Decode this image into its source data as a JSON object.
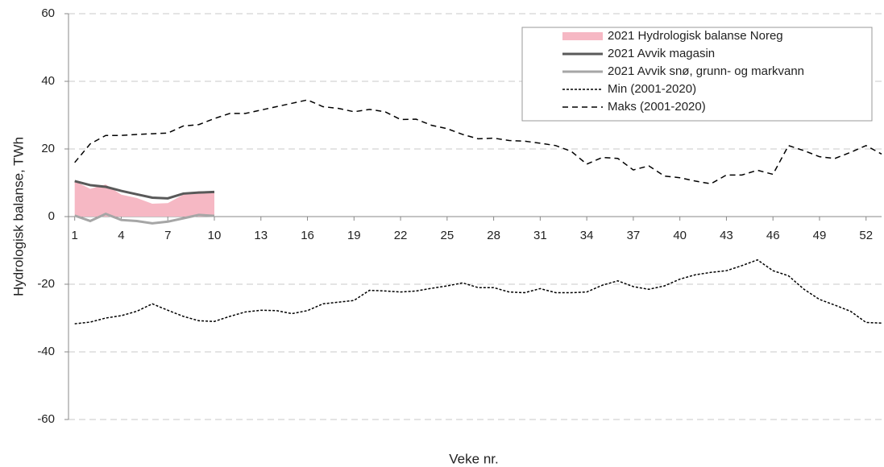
{
  "chart_data": {
    "type": "line",
    "y_label": "Hydrologisk balanse, TWh",
    "x_label": "Veke nr.",
    "x": [
      1,
      2,
      3,
      4,
      5,
      6,
      7,
      8,
      9,
      10,
      11,
      12,
      13,
      14,
      15,
      16,
      17,
      18,
      19,
      20,
      21,
      22,
      23,
      24,
      25,
      26,
      27,
      28,
      29,
      30,
      31,
      32,
      33,
      34,
      35,
      36,
      37,
      38,
      39,
      40,
      41,
      42,
      43,
      44,
      45,
      46,
      47,
      48,
      49,
      50,
      51,
      52,
      53
    ],
    "xlim": [
      0.6,
      53
    ],
    "xticks": [
      1,
      4,
      7,
      10,
      13,
      16,
      19,
      22,
      25,
      28,
      31,
      34,
      37,
      40,
      43,
      46,
      49,
      52
    ],
    "ylim": [
      -60,
      60
    ],
    "yticks": [
      -60,
      -40,
      -20,
      0,
      20,
      40,
      60
    ],
    "grid": true,
    "legend": "top-right",
    "series": [
      {
        "name": "2021 Hydrologisk balanse Noreg",
        "color": "#f6b8c4",
        "style": "area",
        "values": [
          10.5,
          8.2,
          9.5,
          6.5,
          5.5,
          3.8,
          4,
          6.5,
          7.5,
          7.5,
          null,
          null,
          null,
          null,
          null,
          null,
          null,
          null,
          null,
          null,
          null,
          null,
          null,
          null,
          null,
          null,
          null,
          null,
          null,
          null,
          null,
          null,
          null,
          null,
          null,
          null,
          null,
          null,
          null,
          null,
          null,
          null,
          null,
          null,
          null,
          null,
          null,
          null,
          null,
          null,
          null,
          null,
          null
        ]
      },
      {
        "name": "2021 Avvik magasin",
        "color": "#595959",
        "style": "solid",
        "values": [
          10.5,
          9.3,
          8.8,
          7.6,
          6.6,
          5.6,
          5.4,
          6.8,
          7.1,
          7.3,
          null,
          null,
          null,
          null,
          null,
          null,
          null,
          null,
          null,
          null,
          null,
          null,
          null,
          null,
          null,
          null,
          null,
          null,
          null,
          null,
          null,
          null,
          null,
          null,
          null,
          null,
          null,
          null,
          null,
          null,
          null,
          null,
          null,
          null,
          null,
          null,
          null,
          null,
          null,
          null,
          null,
          null,
          null
        ]
      },
      {
        "name": "2021 Avvik snø, grunn- og markvann",
        "color": "#a6a6a6",
        "style": "solid",
        "values": [
          0.3,
          -1.3,
          0.8,
          -1,
          -1.3,
          -2,
          -1.5,
          -0.5,
          0.5,
          0.2,
          null,
          null,
          null,
          null,
          null,
          null,
          null,
          null,
          null,
          null,
          null,
          null,
          null,
          null,
          null,
          null,
          null,
          null,
          null,
          null,
          null,
          null,
          null,
          null,
          null,
          null,
          null,
          null,
          null,
          null,
          null,
          null,
          null,
          null,
          null,
          null,
          null,
          null,
          null,
          null,
          null,
          null,
          null
        ]
      },
      {
        "name": "Min (2001-2020)",
        "color": "#000000",
        "style": "dotted",
        "values": [
          -31.7,
          -31.2,
          -30,
          -29.3,
          -28,
          -25.8,
          -27.7,
          -29.5,
          -30.8,
          -31,
          -29.5,
          -28.2,
          -27.7,
          -27.8,
          -28.7,
          -27.8,
          -25.8,
          -25.3,
          -24.8,
          -21.8,
          -22,
          -22.3,
          -22,
          -21.2,
          -20.5,
          -19.6,
          -21,
          -21,
          -22.3,
          -22.5,
          -21.3,
          -22.5,
          -22.5,
          -22.3,
          -20.3,
          -19,
          -20.7,
          -21.5,
          -20.5,
          -18.5,
          -17.2,
          -16.5,
          -16,
          -14.5,
          -12.8,
          -16,
          -17.5,
          -21.5,
          -24.5,
          -26.2,
          -28,
          -31.3,
          -31.5
        ]
      },
      {
        "name": "Maks (2001-2020)",
        "color": "#000000",
        "style": "dashed",
        "values": [
          16,
          21.5,
          24,
          24,
          24.3,
          24.5,
          24.7,
          26.8,
          27.2,
          29,
          30.5,
          30.5,
          31.5,
          32.5,
          33.5,
          34.5,
          32.5,
          32,
          31,
          31.7,
          31,
          28.7,
          28.8,
          27,
          26,
          24.3,
          23,
          23.2,
          22.5,
          22.3,
          21.7,
          21,
          19.3,
          15.5,
          17.5,
          17.2,
          13.8,
          15,
          12,
          11.5,
          10.5,
          9.7,
          12.3,
          12.3,
          13.7,
          12.5,
          21,
          19.5,
          17.7,
          17.2,
          19,
          21,
          18.5
        ]
      }
    ]
  }
}
